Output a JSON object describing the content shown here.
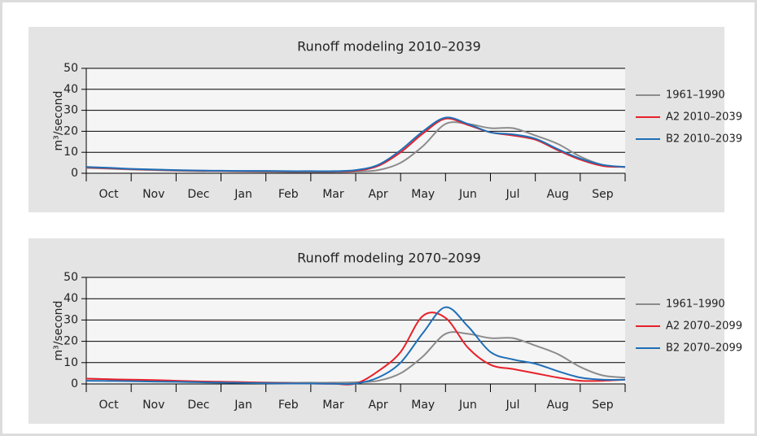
{
  "chart_data": [
    {
      "type": "line",
      "title": "Runoff modeling 2010–2039",
      "ylabel": "m³/second",
      "x": [
        0,
        0.5,
        1,
        1.5,
        2,
        2.5,
        3,
        3.5,
        4,
        4.5,
        5,
        5.5,
        6,
        6.5,
        7,
        7.5,
        8,
        8.5,
        9,
        9.5,
        10,
        10.5,
        11,
        11.5,
        12
      ],
      "xlim": [
        0,
        12
      ],
      "xticks": [
        {
          "value": 0.5,
          "label": "Oct"
        },
        {
          "value": 1.5,
          "label": "Nov"
        },
        {
          "value": 2.5,
          "label": "Dec"
        },
        {
          "value": 3.5,
          "label": "Jan"
        },
        {
          "value": 4.5,
          "label": "Feb"
        },
        {
          "value": 5.5,
          "label": "Mar"
        },
        {
          "value": 6.5,
          "label": "Apr"
        },
        {
          "value": 7.5,
          "label": "May"
        },
        {
          "value": 8.5,
          "label": "Jun"
        },
        {
          "value": 9.5,
          "label": "Jul"
        },
        {
          "value": 10.5,
          "label": "Aug"
        },
        {
          "value": 11.5,
          "label": "Sep"
        }
      ],
      "ylim": [
        0,
        50
      ],
      "yticks": [
        0,
        10,
        20,
        30,
        40,
        50
      ],
      "grid": true,
      "series": [
        {
          "name": "1961–1990",
          "color": "#8c8c8c",
          "values": [
            2.5,
            2.2,
            1.8,
            1.5,
            1.2,
            1,
            1,
            0.8,
            0.7,
            0.6,
            0.6,
            0.6,
            0.8,
            1.5,
            5,
            13,
            23.5,
            23.5,
            21.5,
            21.5,
            18,
            14,
            8,
            4,
            3
          ]
        },
        {
          "name": "A2 2010–2039",
          "color": "#e8202a",
          "values": [
            2.8,
            2.4,
            2,
            1.7,
            1.4,
            1.2,
            1.1,
            1,
            1,
            0.9,
            0.9,
            0.9,
            1.2,
            3.5,
            10,
            19,
            26,
            23,
            19.5,
            18,
            16,
            11,
            6.5,
            3.5,
            3
          ]
        },
        {
          "name": "B2 2010–2039",
          "color": "#1f6fb7",
          "values": [
            3,
            2.6,
            2.1,
            1.8,
            1.5,
            1.3,
            1.2,
            1.1,
            1.1,
            1,
            1,
            1,
            1.5,
            4,
            11,
            20,
            26.5,
            23.5,
            19.5,
            18.5,
            16.5,
            11.5,
            7,
            4,
            3
          ]
        }
      ]
    },
    {
      "type": "line",
      "title": "Runoff modeling 2070–2099",
      "ylabel": "m³/second",
      "x": [
        0,
        0.5,
        1,
        1.5,
        2,
        2.5,
        3,
        3.5,
        4,
        4.5,
        5,
        5.5,
        6,
        6.5,
        7,
        7.5,
        8,
        8.5,
        9,
        9.5,
        10,
        10.5,
        11,
        11.5,
        12
      ],
      "xlim": [
        0,
        12
      ],
      "xticks": [
        {
          "value": 0.5,
          "label": "Oct"
        },
        {
          "value": 1.5,
          "label": "Nov"
        },
        {
          "value": 2.5,
          "label": "Dec"
        },
        {
          "value": 3.5,
          "label": "Jan"
        },
        {
          "value": 4.5,
          "label": "Feb"
        },
        {
          "value": 5.5,
          "label": "Mar"
        },
        {
          "value": 6.5,
          "label": "Apr"
        },
        {
          "value": 7.5,
          "label": "May"
        },
        {
          "value": 8.5,
          "label": "Jun"
        },
        {
          "value": 9.5,
          "label": "Jul"
        },
        {
          "value": 10.5,
          "label": "Aug"
        },
        {
          "value": 11.5,
          "label": "Sep"
        }
      ],
      "ylim": [
        0,
        50
      ],
      "yticks": [
        0,
        10,
        20,
        30,
        40,
        50
      ],
      "grid": true,
      "series": [
        {
          "name": "1961–1990",
          "color": "#8c8c8c",
          "values": [
            2.5,
            2.2,
            1.8,
            1.5,
            1.2,
            1,
            1,
            0.8,
            0.7,
            0.6,
            0.6,
            0.6,
            0.8,
            1.5,
            5,
            13,
            23.5,
            23.5,
            21.5,
            21.5,
            18,
            14,
            8,
            4,
            3
          ]
        },
        {
          "name": "A2 2070–2099",
          "color": "#e8202a",
          "values": [
            2.5,
            2.2,
            2,
            1.8,
            1.5,
            1.2,
            1,
            0.8,
            0.5,
            0.3,
            0.2,
            0.1,
            0.2,
            6,
            15,
            32,
            31,
            17,
            9,
            7,
            5,
            3,
            1.5,
            1.5,
            2
          ]
        },
        {
          "name": "B2 2070–2099",
          "color": "#1f6fb7",
          "values": [
            1.5,
            1.4,
            1.3,
            1.1,
            1,
            0.8,
            0.6,
            0.5,
            0.3,
            0.2,
            0.2,
            0.1,
            0.2,
            3,
            10,
            24,
            36,
            27,
            15,
            11.5,
            9.5,
            6,
            3,
            2,
            2
          ]
        }
      ]
    }
  ]
}
